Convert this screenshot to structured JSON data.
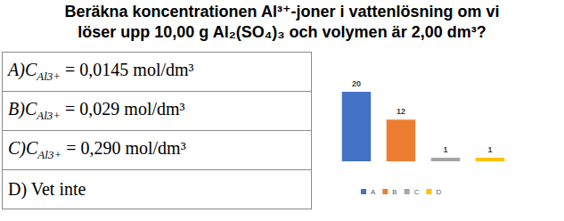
{
  "question": [
    "Beräkna koncentrationen Al³⁺-joner i vattenlösning om vi",
    "löser upp 10,00 g Al₂(SO₄)₃ och volymen är 2,00 dm³?"
  ],
  "table": {
    "rows": [
      {
        "prefix": "A)",
        "symbol": "C",
        "subscript": "Al3+",
        "rest": " = 0,0145 mol/dm³"
      },
      {
        "prefix": "B)",
        "symbol": "C",
        "subscript": "Al3+",
        "rest": " = 0,029 mol/dm³"
      },
      {
        "prefix": "C)",
        "symbol": "C",
        "subscript": "Al3+",
        "rest": " = 0,290 mol/dm³"
      },
      {
        "prefix": "D) Vet inte"
      }
    ]
  },
  "chart_data": {
    "type": "bar",
    "categories": [
      "A",
      "B",
      "C",
      "D"
    ],
    "values": [
      20,
      12,
      1,
      1
    ],
    "colors": [
      "#4472c4",
      "#ed7d31",
      "#a5a5a5",
      "#ffc000"
    ],
    "ylim": [
      0,
      20
    ],
    "grid": false,
    "data_labels": true,
    "tick_labels": false,
    "legend": "bottom"
  }
}
